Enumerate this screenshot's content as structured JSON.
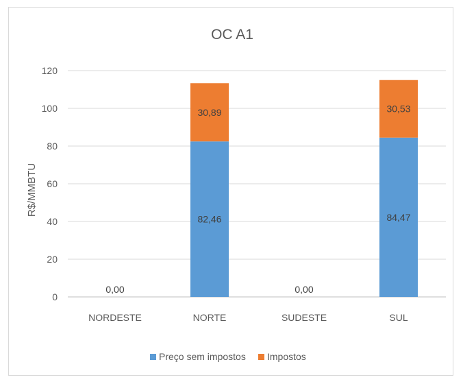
{
  "chart_data": {
    "type": "bar",
    "stacked": true,
    "title": "OC A1",
    "xlabel": "",
    "ylabel": "R$/MMBTU",
    "ylim": [
      0,
      120
    ],
    "yticks": [
      0,
      20,
      40,
      60,
      80,
      100,
      120
    ],
    "categories": [
      "NORDESTE",
      "NORTE",
      "SUDESTE",
      "SUL"
    ],
    "series": [
      {
        "name": "Preço sem impostos",
        "color": "#5b9bd5",
        "values": [
          0,
          82.46,
          0,
          84.47
        ],
        "labels": [
          "0,00",
          "82,46",
          "0,00",
          "84,47"
        ]
      },
      {
        "name": "Impostos",
        "color": "#ed7d31",
        "values": [
          0,
          30.89,
          0,
          30.53
        ],
        "labels": [
          "",
          "30,89",
          "",
          "30,53"
        ]
      }
    ],
    "grid": true,
    "legend_position": "bottom"
  }
}
